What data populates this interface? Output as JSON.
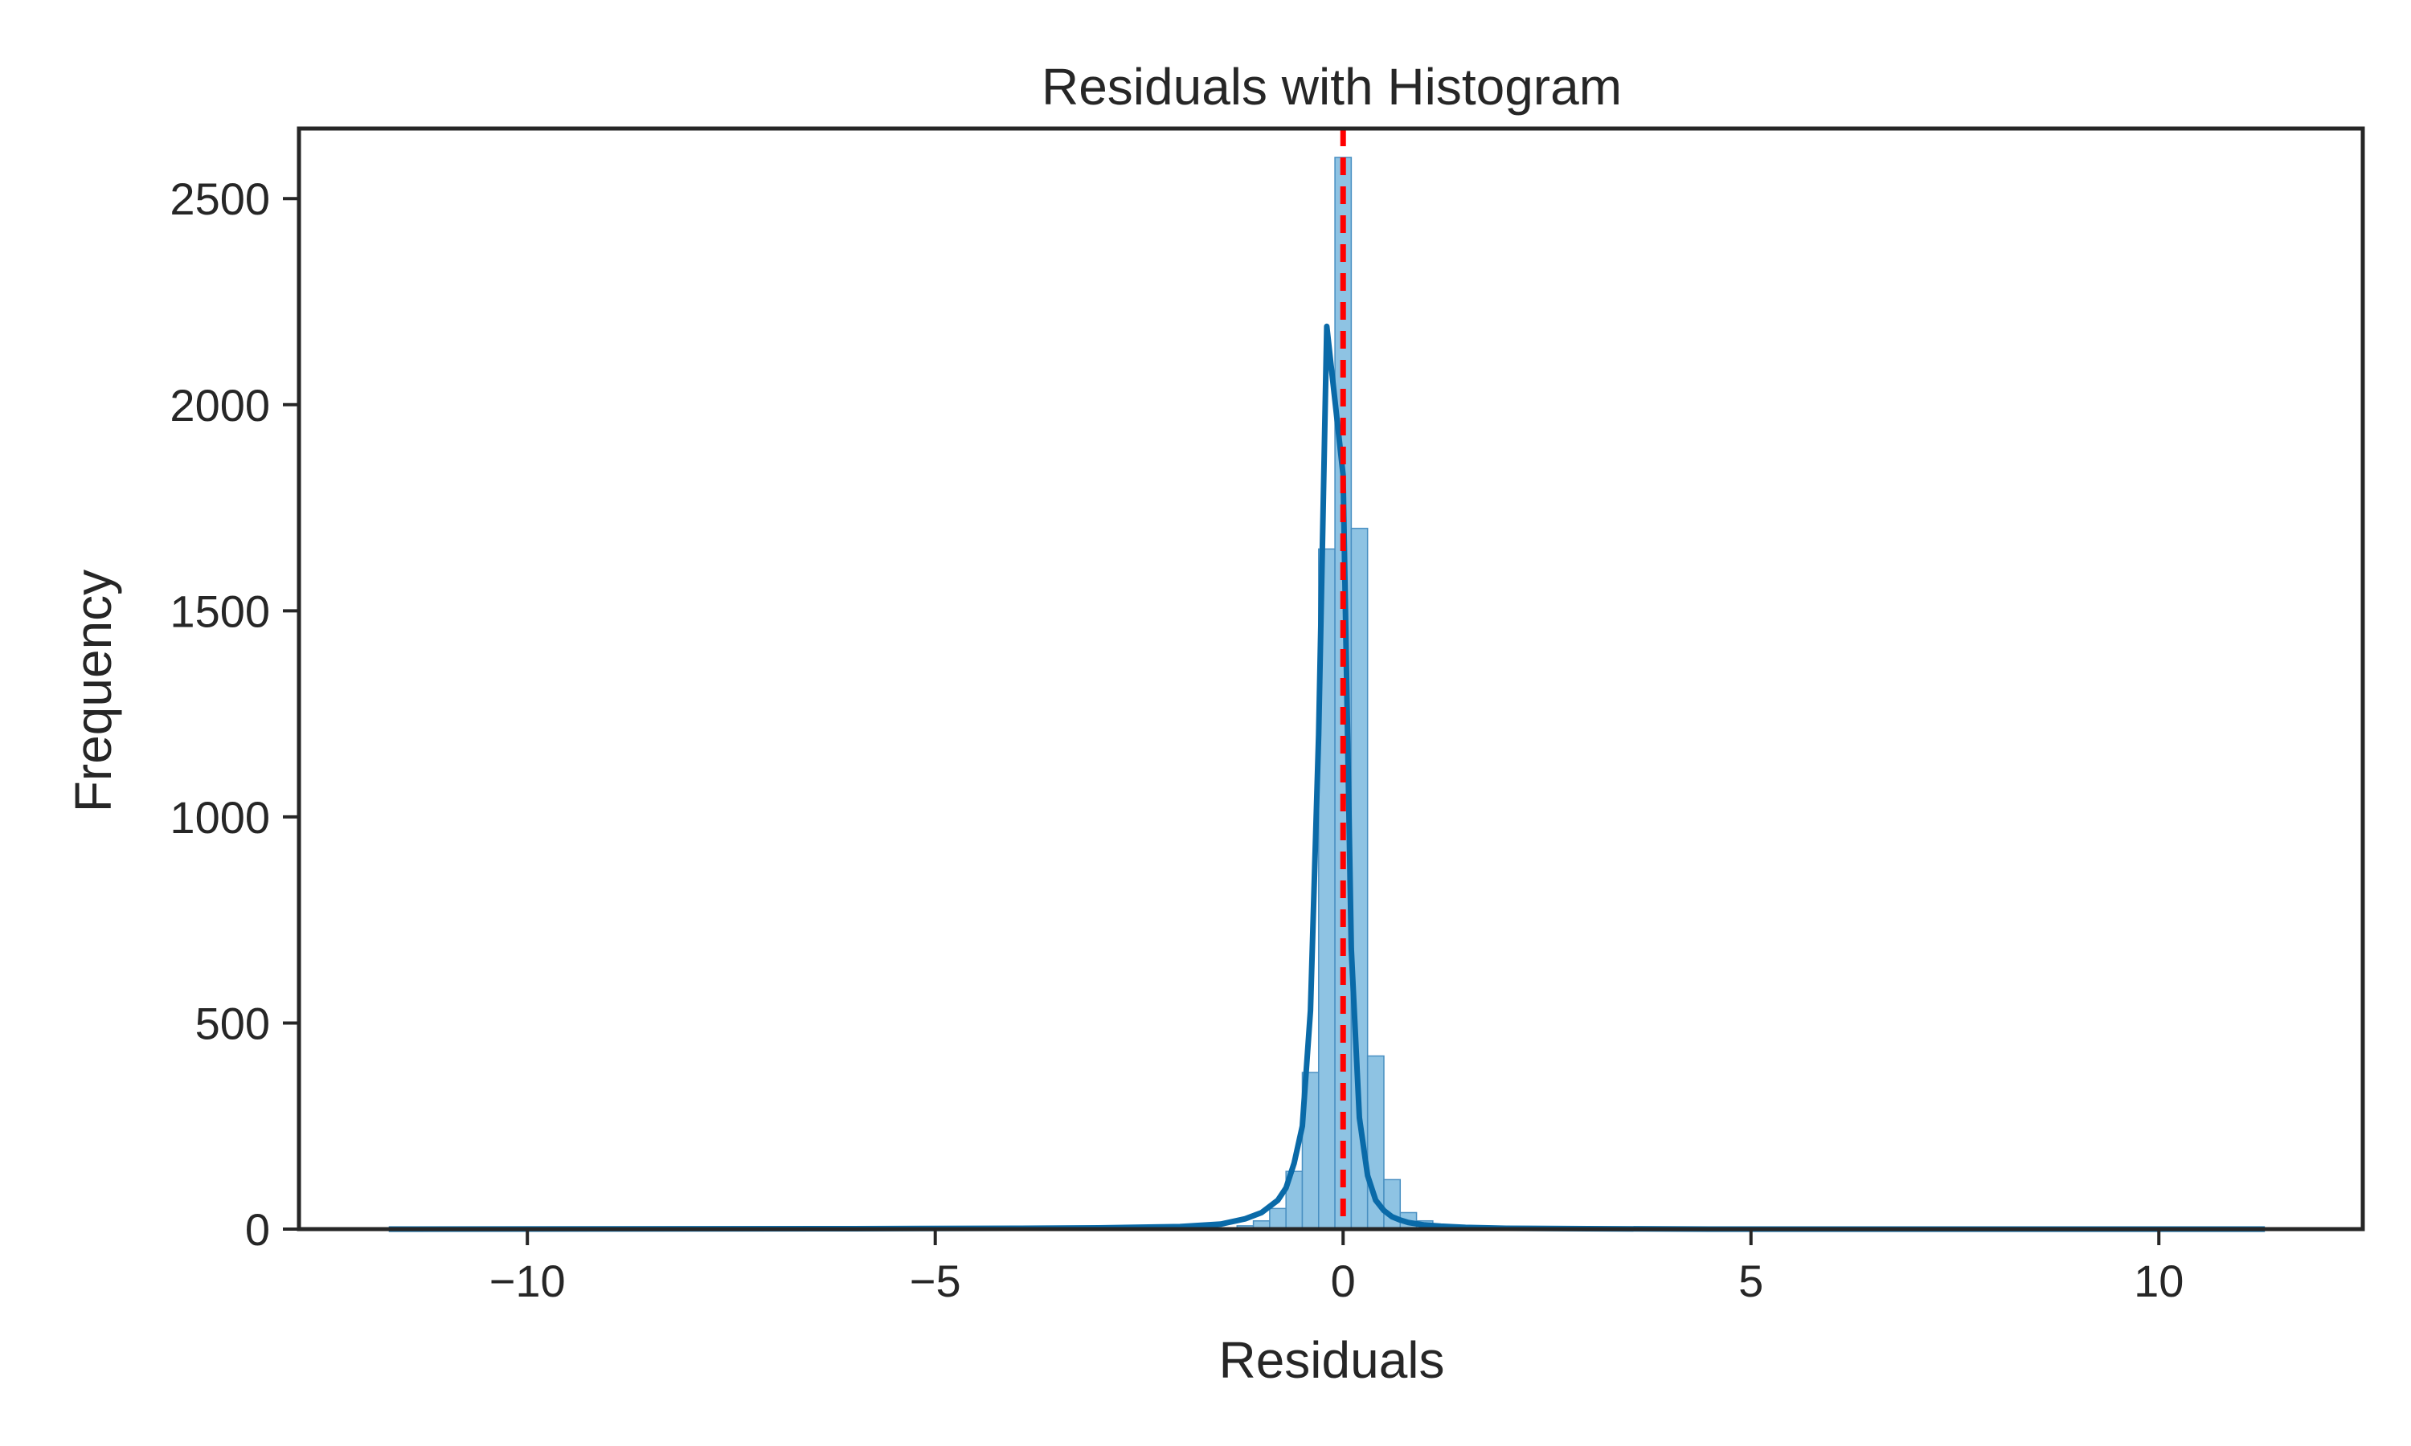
{
  "chart_data": {
    "type": "bar",
    "title": "Residuals with Histogram",
    "xlabel": "Residuals",
    "ylabel": "Frequency",
    "xlim": [
      -12.8,
      12.5
    ],
    "ylim": [
      0,
      2670
    ],
    "x_ticks": [
      -10,
      -5,
      0,
      5,
      10
    ],
    "x_tick_labels": [
      "−10",
      "−5",
      "0",
      "5",
      "10"
    ],
    "y_ticks": [
      0,
      500,
      1000,
      1500,
      2000,
      2500
    ],
    "y_tick_labels": [
      "0",
      "500",
      "1000",
      "1500",
      "2000",
      "2500"
    ],
    "grid": false,
    "legend": "none",
    "colors": {
      "bars": "#8ec3e3",
      "bar_edge": "#4a90c2",
      "kde": "#0a6aa8",
      "reference_line": "#ff0000",
      "axes": "#262626"
    },
    "histogram": {
      "bin_centers": [
        -1.2,
        -1.0,
        -0.8,
        -0.6,
        -0.4,
        -0.2,
        0.0,
        0.2,
        0.4,
        0.6,
        0.8,
        1.0,
        1.2,
        1.4
      ],
      "values": [
        8,
        20,
        50,
        140,
        380,
        1650,
        2600,
        1700,
        420,
        120,
        40,
        20,
        8,
        4
      ]
    },
    "kde": {
      "x": [
        -11.7,
        -6,
        -4,
        -3,
        -2,
        -1.5,
        -1.2,
        -1.0,
        -0.8,
        -0.7,
        -0.6,
        -0.5,
        -0.4,
        -0.3,
        -0.2,
        -0.1,
        0.0,
        0.1,
        0.2,
        0.3,
        0.4,
        0.5,
        0.6,
        0.7,
        0.8,
        1.0,
        1.2,
        1.5,
        2.0,
        3.0,
        4.5,
        6.0,
        11.3
      ],
      "y": [
        0,
        1,
        2,
        3,
        6,
        12,
        25,
        40,
        70,
        100,
        160,
        250,
        530,
        1200,
        2190,
        2010,
        1830,
        680,
        270,
        130,
        70,
        45,
        30,
        22,
        16,
        10,
        7,
        4,
        2,
        1,
        0,
        0,
        0
      ]
    },
    "reference_line_x": 0
  }
}
